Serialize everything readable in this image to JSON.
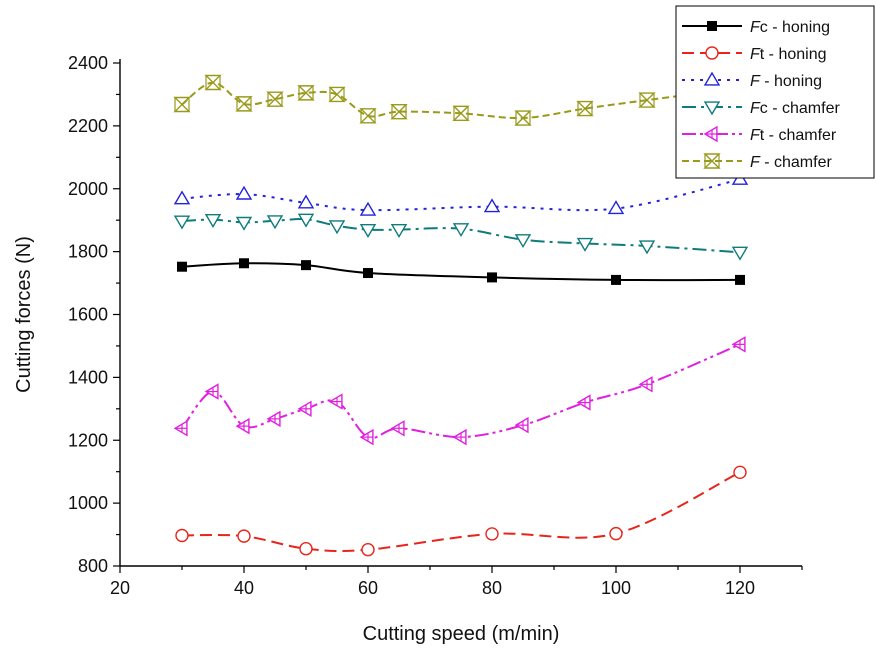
{
  "chart_data": {
    "type": "line",
    "title": "",
    "xlabel": "Cutting speed (m/min)",
    "ylabel": "Cutting forces (N)",
    "xlim": [
      20,
      130
    ],
    "ylim": [
      800,
      2400
    ],
    "xticks": [
      20,
      40,
      60,
      80,
      100,
      120
    ],
    "yticks": [
      800,
      1000,
      1200,
      1400,
      1600,
      1800,
      2000,
      2200,
      2400
    ],
    "grid": false,
    "legend_position": "top-right",
    "series": [
      {
        "name": "Fc - honing",
        "name_italic": "F",
        "name_rest": "c - honing",
        "color": "#000000",
        "dash": "",
        "marker": "filled-square",
        "x": [
          30,
          40,
          50,
          60,
          80,
          100,
          120
        ],
        "values": [
          1752,
          1763,
          1757,
          1732,
          1718,
          1710,
          1710
        ]
      },
      {
        "name": "Ft - honing",
        "name_italic": "F",
        "name_rest": "t - honing",
        "color": "#e8241c",
        "dash": "12 6",
        "marker": "circle",
        "x": [
          30,
          40,
          50,
          60,
          80,
          100,
          120
        ],
        "values": [
          897,
          895,
          855,
          852,
          902,
          903,
          1098
        ]
      },
      {
        "name": "F - honing",
        "name_italic": "F",
        "name_rest": " - honing",
        "color": "#2222dd",
        "dash": "3 6",
        "marker": "triangle-up",
        "x": [
          30,
          40,
          50,
          60,
          80,
          100,
          120
        ],
        "values": [
          1968,
          1983,
          1955,
          1932,
          1943,
          1937,
          2030
        ]
      },
      {
        "name": "Fc - chamfer",
        "name_italic": "F",
        "name_rest": "c - chamfer",
        "color": "#0e7c7b",
        "dash": "14 5 3 5",
        "marker": "triangle-down",
        "x": [
          30,
          35,
          40,
          45,
          50,
          55,
          60,
          65,
          75,
          85,
          95,
          105,
          120
        ],
        "values": [
          1897,
          1902,
          1893,
          1898,
          1903,
          1882,
          1870,
          1870,
          1873,
          1838,
          1826,
          1818,
          1798
        ]
      },
      {
        "name": "Ft - chamfer",
        "name_italic": "F",
        "name_rest": "t - chamfer",
        "color": "#e020e0",
        "dash": "14 4 3 4 3 4",
        "marker": "triangle-left-cross",
        "x": [
          30,
          35,
          40,
          45,
          50,
          55,
          60,
          65,
          75,
          85,
          95,
          105,
          120
        ],
        "values": [
          1238,
          1355,
          1245,
          1268,
          1300,
          1323,
          1210,
          1238,
          1210,
          1248,
          1320,
          1378,
          1505
        ]
      },
      {
        "name": "F - chamfer",
        "name_italic": "F",
        "name_rest": " - chamfer",
        "color": "#9a9a1a",
        "dash": "7 4",
        "marker": "hourglass-x",
        "x": [
          30,
          35,
          40,
          45,
          50,
          55,
          60,
          65,
          75,
          85,
          95,
          105,
          120
        ],
        "values": [
          2268,
          2338,
          2270,
          2285,
          2305,
          2300,
          2232,
          2245,
          2240,
          2225,
          2255,
          2282,
          2320
        ]
      }
    ]
  }
}
